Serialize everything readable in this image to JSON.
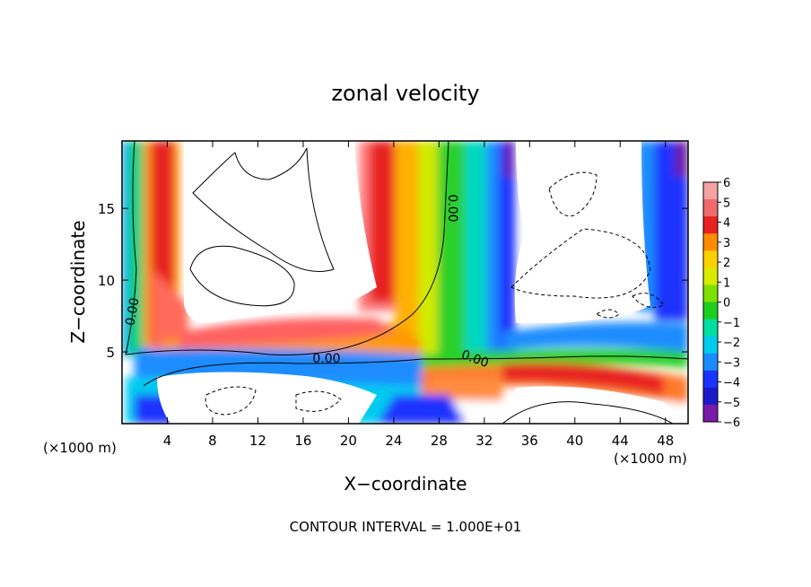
{
  "chart_data": {
    "type": "heatmap",
    "title": "zonal velocity",
    "xlabel": "X−coordinate",
    "ylabel": "Z−coordinate",
    "x_unit_left": "(×1000 m)",
    "x_unit_right": "(×1000 m)",
    "footer": "CONTOUR INTERVAL = 1.000E+01",
    "xlim": [
      0,
      50
    ],
    "ylim": [
      0,
      19.7
    ],
    "x_ticks": [
      4,
      8,
      12,
      16,
      20,
      24,
      28,
      32,
      36,
      40,
      44,
      48
    ],
    "y_ticks": [
      5,
      10,
      15
    ],
    "colorbar": {
      "levels": [
        6,
        5,
        4,
        3,
        2,
        1,
        0,
        -1,
        -2,
        -3,
        -4,
        -5,
        -6
      ],
      "colors": [
        "#f4a3a3",
        "#ef6a6a",
        "#e82020",
        "#ff8c00",
        "#ffd000",
        "#d8ea00",
        "#7ee000",
        "#1dcf1d",
        "#00e0a0",
        "#00ccee",
        "#1a8cff",
        "#1a33ff",
        "#1a1acc",
        "#7a1aa8"
      ]
    },
    "contour_labels": [
      "0.00",
      "0.00",
      "0.00",
      "0.00"
    ]
  }
}
